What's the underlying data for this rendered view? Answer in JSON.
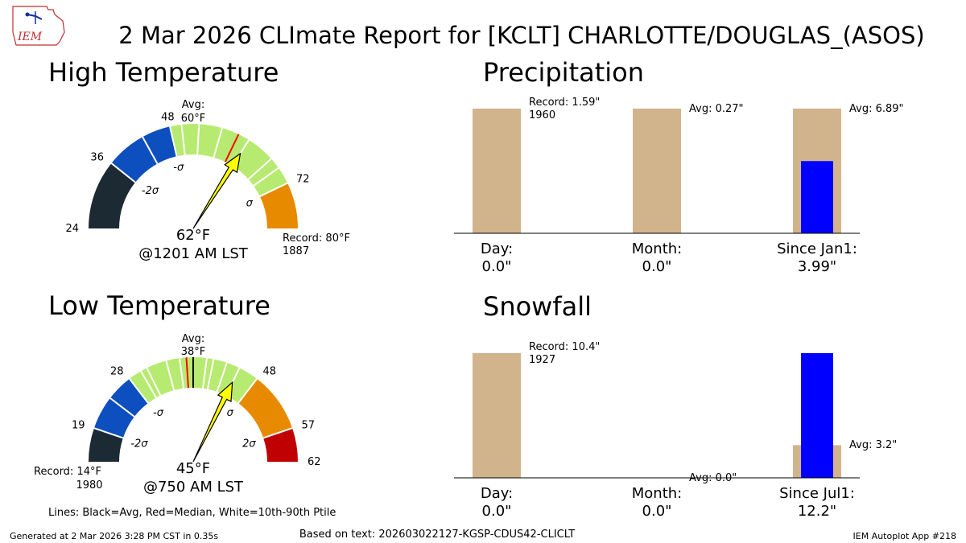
{
  "header": {
    "title": "2 Mar 2026 CLImate Report for [KCLT] CHARLOTTE/DOUGLAS_(ASOS)",
    "logo_text": "IEM"
  },
  "footer": {
    "generated": "Generated at 2 Mar 2026 3:28 PM CST in 0.35s",
    "based_on": "Based on text: 202603022127-KGSP-CDUS42-CLICLT",
    "app": "IEM Autoplot App #218"
  },
  "lines_legend": "Lines: Black=Avg, Red=Median, White=10th-90th Ptile",
  "colors": {
    "darkest": "#1c2a33",
    "blue": "#0d4fbf",
    "green": "#b7ea70",
    "orange": "#e88a00",
    "red": "#c00000",
    "tan": "#d2b48c",
    "obs_bar": "#0000ff",
    "needle": "#ffff00"
  },
  "chart_data": [
    {
      "type": "gauge",
      "title": "High Temperature",
      "range": [
        24,
        80
      ],
      "bands": [
        {
          "from": 24,
          "to": 36,
          "color": "darkest"
        },
        {
          "from": 36,
          "to": 48,
          "color": "blue"
        },
        {
          "from": 48,
          "to": 72,
          "color": "green"
        },
        {
          "from": 72,
          "to": 80,
          "color": "orange"
        }
      ],
      "tick_labels": [
        {
          "value": 24,
          "text": "24"
        },
        {
          "value": 36,
          "text": "36"
        },
        {
          "value": 48,
          "text": "48"
        },
        {
          "value": 72,
          "text": "72"
        }
      ],
      "sigma_labels": [
        {
          "value": 36,
          "text": "-2σ"
        },
        {
          "value": 48,
          "text": "-σ"
        },
        {
          "value": 72,
          "text": "σ"
        }
      ],
      "white_lines": [
        43,
        50,
        53,
        57,
        62,
        67,
        69
      ],
      "avg_line": 60,
      "median_line": 60,
      "avg_label": {
        "line1": "Avg:",
        "line2": "60°F"
      },
      "observed": 62,
      "observed_label": "62°F",
      "time_label": "@1201 AM LST",
      "record": {
        "value": 80,
        "line1": "Record: 80°F",
        "line2": "1887",
        "side": "right"
      }
    },
    {
      "type": "gauge",
      "title": "Low Temperature",
      "range": [
        14,
        62
      ],
      "bands": [
        {
          "from": 14,
          "to": 19,
          "color": "darkest"
        },
        {
          "from": 19,
          "to": 28,
          "color": "blue"
        },
        {
          "from": 28,
          "to": 48,
          "color": "green"
        },
        {
          "from": 48,
          "to": 57,
          "color": "orange"
        },
        {
          "from": 57,
          "to": 62,
          "color": "red"
        }
      ],
      "tick_labels": [
        {
          "value": 19,
          "text": "19"
        },
        {
          "value": 28,
          "text": "28"
        },
        {
          "value": 48,
          "text": "48"
        },
        {
          "value": 57,
          "text": "57"
        },
        {
          "value": 62,
          "text": "62"
        }
      ],
      "sigma_labels": [
        {
          "value": 19,
          "text": "-2σ"
        },
        {
          "value": 28,
          "text": "-σ"
        },
        {
          "value": 48,
          "text": "σ"
        },
        {
          "value": 57,
          "text": "2σ"
        }
      ],
      "white_lines": [
        24,
        30,
        31,
        34,
        36,
        40,
        41,
        43,
        45
      ],
      "avg_line": 38,
      "median_line": 37,
      "avg_label": {
        "line1": "Avg:",
        "line2": "38°F"
      },
      "observed": 45,
      "observed_label": "45°F",
      "time_label": "@750 AM LST",
      "record": {
        "value": 14,
        "line1": "Record: 14°F",
        "line2": "1980",
        "side": "left"
      }
    },
    {
      "type": "bar",
      "title": "Precipitation",
      "categories": [
        {
          "label": "Day:",
          "value_text": "0.0\""
        },
        {
          "label": "Month:",
          "value_text": "0.0\""
        },
        {
          "label": "Since Jan1:",
          "value_text": "3.99\""
        }
      ],
      "normalized_ref": [
        1.0,
        1.0,
        1.0
      ],
      "normalized_obs": [
        0.0,
        0.0,
        0.579
      ],
      "annotations": [
        {
          "line1": "Record: 1.59\"",
          "line2": "1960"
        },
        {
          "line1": "Avg: 0.27\"",
          "line2": ""
        },
        {
          "line1": "Avg: 6.89\"",
          "line2": ""
        }
      ]
    },
    {
      "type": "bar",
      "title": "Snowfall",
      "categories": [
        {
          "label": "Day:",
          "value_text": "0.0\""
        },
        {
          "label": "Month:",
          "value_text": "0.0\""
        },
        {
          "label": "Since Jul1:",
          "value_text": "12.2\""
        }
      ],
      "normalized_ref": [
        1.0,
        0.0,
        0.262
      ],
      "normalized_obs": [
        0.0,
        0.0,
        1.0
      ],
      "annotations": [
        {
          "line1": "Record: 10.4\"",
          "line2": "1927"
        },
        {
          "line1": "Avg: 0.0\"",
          "line2": ""
        },
        {
          "line1": "Avg: 3.2\"",
          "line2": ""
        }
      ]
    }
  ]
}
